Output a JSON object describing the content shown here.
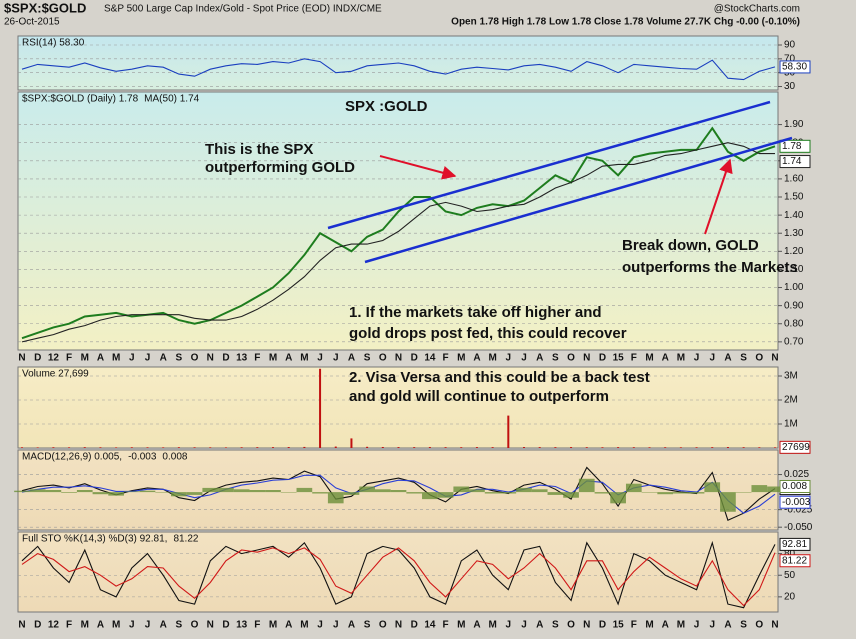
{
  "header": {
    "title": "$SPX:$GOLD",
    "subtitle": "S&P 500 Large Cap Index/Gold - Spot Price (EOD) INDX/CME",
    "date": "26-Oct-2015",
    "source": "@StockCharts.com",
    "quote": "Open 1.78  High 1.78  Low 1.78  Close 1.78  Volume 27.7K  Chg -0.00 (-0.10%)"
  },
  "chart_data": [
    {
      "type": "line",
      "panel": "rsi",
      "series": [
        {
          "name": "RSI(14) 58.30",
          "color": "#1a3fbf",
          "values": [
            55,
            62,
            60,
            58,
            64,
            57,
            52,
            55,
            60,
            58,
            48,
            45,
            55,
            60,
            63,
            62,
            66,
            64,
            70,
            66,
            50,
            52,
            60,
            62,
            64,
            60,
            52,
            48,
            55,
            58,
            56,
            54,
            60,
            62,
            58,
            52,
            66,
            60,
            50,
            62,
            60,
            58,
            56,
            55,
            68,
            42,
            40,
            52,
            58.3
          ]
        }
      ],
      "last_label": "58.30",
      "ylim": [
        25,
        103
      ],
      "yticks": [
        30,
        50,
        70,
        90
      ],
      "grid": true
    },
    {
      "type": "line",
      "panel": "price",
      "categories": [
        "N",
        "D",
        "12",
        "F",
        "M",
        "A",
        "M",
        "J",
        "J",
        "A",
        "S",
        "O",
        "N",
        "D",
        "13",
        "F",
        "M",
        "A",
        "M",
        "J",
        "J",
        "A",
        "S",
        "O",
        "N",
        "D",
        "14",
        "F",
        "M",
        "A",
        "M",
        "J",
        "J",
        "A",
        "S",
        "O",
        "N",
        "D",
        "15",
        "F",
        "M",
        "A",
        "M",
        "J",
        "J",
        "A",
        "S",
        "O",
        "N"
      ],
      "series": [
        {
          "name": "$SPX:$GOLD (Daily) 1.78",
          "color": "#1e7d1e",
          "values": [
            0.72,
            0.75,
            0.78,
            0.8,
            0.84,
            0.85,
            0.86,
            0.84,
            0.85,
            0.86,
            0.82,
            0.8,
            0.82,
            0.86,
            0.9,
            0.95,
            1.0,
            1.08,
            1.18,
            1.3,
            1.25,
            1.2,
            1.28,
            1.32,
            1.42,
            1.5,
            1.5,
            1.42,
            1.4,
            1.44,
            1.46,
            1.45,
            1.48,
            1.55,
            1.62,
            1.58,
            1.72,
            1.7,
            1.62,
            1.72,
            1.74,
            1.75,
            1.76,
            1.76,
            1.88,
            1.75,
            1.7,
            1.75,
            1.78
          ]
        },
        {
          "name": "MA(50) 1.74",
          "color": "#222222",
          "values": [
            0.7,
            0.72,
            0.74,
            0.77,
            0.79,
            0.82,
            0.84,
            0.85,
            0.85,
            0.85,
            0.85,
            0.83,
            0.82,
            0.82,
            0.84,
            0.88,
            0.93,
            0.99,
            1.06,
            1.15,
            1.22,
            1.24,
            1.24,
            1.26,
            1.31,
            1.38,
            1.45,
            1.47,
            1.45,
            1.42,
            1.43,
            1.45,
            1.46,
            1.5,
            1.55,
            1.58,
            1.62,
            1.67,
            1.68,
            1.68,
            1.7,
            1.73,
            1.74,
            1.76,
            1.78,
            1.8,
            1.78,
            1.74,
            1.74
          ]
        }
      ],
      "ylim": [
        0.655,
        2.08
      ],
      "yticks": [
        {
          "value": 0.7,
          "label": "0.70"
        },
        {
          "value": 0.8,
          "label": "0.80"
        },
        {
          "value": 0.9,
          "label": "0.90"
        },
        {
          "value": 1.0,
          "label": "1.00"
        },
        {
          "value": 1.1,
          "label": "1.10"
        },
        {
          "value": 1.2,
          "label": "1.20"
        },
        {
          "value": 1.3,
          "label": "1.30"
        },
        {
          "value": 1.4,
          "label": "1.40"
        },
        {
          "value": 1.5,
          "label": "1.50"
        },
        {
          "value": 1.6,
          "label": "1.60"
        },
        {
          "value": 1.7,
          "label": "1.70"
        },
        {
          "value": 1.8,
          "label": "1.80"
        },
        {
          "value": 1.9,
          "label": "1.90"
        }
      ],
      "grid": true,
      "annotations": [
        {
          "text": "SPX :GOLD",
          "color": "#1a2fd0"
        },
        {
          "text": "This is the SPX",
          "color": "#e0102a"
        },
        {
          "text": "outperforming GOLD",
          "color": "#e0102a"
        },
        {
          "text": "Break down, GOLD",
          "color": "#e0102a"
        },
        {
          "text": "outperforms the Markets",
          "color": "#e0102a"
        },
        {
          "text": "1.  If the markets take off higher and",
          "color": "#1a2fd0"
        },
        {
          "text": "gold drops post fed, this could recover",
          "color": "#1a2fd0"
        },
        {
          "text": "2. Visa Versa and this could be a back test",
          "color": "#1a2fd0"
        },
        {
          "text": "and gold will continue to outperform",
          "color": "#1a2fd0"
        }
      ]
    },
    {
      "type": "bar",
      "panel": "volume",
      "series": [
        {
          "name": "Volume 27,699",
          "color": "#c01010",
          "values": [
            30000,
            25000,
            32000,
            28000,
            35000,
            30000,
            26000,
            31000,
            29000,
            27000,
            33000,
            30000,
            28000,
            26000,
            31000,
            34000,
            36000,
            40000,
            45000,
            3300000,
            60000,
            400000,
            50000,
            42000,
            38000,
            36000,
            40000,
            35000,
            33000,
            38000,
            36000,
            1350000,
            40000,
            37000,
            35000,
            39000,
            34000,
            31000,
            36000,
            33000,
            30000,
            32000,
            29000,
            31000,
            35000,
            40000,
            33000,
            30000,
            27699
          ]
        }
      ],
      "ylim": [
        0,
        3375000
      ],
      "yticks": [
        {
          "value": 1000000,
          "label": "1M"
        },
        {
          "value": 2000000,
          "label": "2M"
        },
        {
          "value": 3000000,
          "label": "3M"
        }
      ],
      "grid": true
    },
    {
      "type": "line",
      "panel": "macd",
      "series": [
        {
          "name": "MACD(12,26,9) 0.005,",
          "color": "#111111",
          "values": [
            0.002,
            0.008,
            0.01,
            0.006,
            0.012,
            0.003,
            -0.004,
            0.002,
            0.006,
            0.004,
            -0.008,
            -0.012,
            0.002,
            0.01,
            0.014,
            0.016,
            0.02,
            0.018,
            0.03,
            0.022,
            -0.01,
            -0.006,
            0.012,
            0.016,
            0.02,
            0.014,
            -0.004,
            -0.014,
            0.004,
            0.008,
            0.002,
            -0.002,
            0.01,
            0.014,
            0.004,
            -0.01,
            0.035,
            0.012,
            -0.02,
            0.018,
            0.01,
            0.004,
            0.0,
            -0.002,
            0.028,
            -0.04,
            -0.03,
            -0.01,
            0.005
          ]
        },
        {
          "name": "-0.003",
          "color": "#2a3fd6",
          "values": [
            0.0,
            0.004,
            0.007,
            0.007,
            0.009,
            0.006,
            0.001,
            0.001,
            0.004,
            0.004,
            -0.002,
            -0.008,
            -0.004,
            0.004,
            0.01,
            0.013,
            0.017,
            0.018,
            0.024,
            0.024,
            0.006,
            -0.002,
            0.004,
            0.012,
            0.017,
            0.016,
            0.006,
            -0.006,
            -0.004,
            0.004,
            0.004,
            0.0,
            0.004,
            0.01,
            0.008,
            -0.002,
            0.016,
            0.014,
            -0.004,
            0.006,
            0.01,
            0.007,
            0.002,
            0.0,
            0.014,
            -0.012,
            -0.03,
            -0.02,
            -0.003
          ]
        },
        {
          "name": "0.008",
          "color": "#6b8e3a",
          "style": "bar",
          "values": [
            0.002,
            0.004,
            0.003,
            -0.001,
            0.003,
            -0.003,
            -0.005,
            0.001,
            0.002,
            0.0,
            -0.006,
            -0.004,
            0.006,
            0.006,
            0.004,
            0.003,
            0.003,
            0.0,
            0.006,
            -0.002,
            -0.016,
            -0.004,
            0.008,
            0.004,
            0.003,
            -0.002,
            -0.01,
            -0.008,
            0.008,
            0.004,
            -0.002,
            -0.002,
            0.006,
            0.004,
            -0.004,
            -0.008,
            0.019,
            -0.002,
            -0.016,
            0.012,
            0.0,
            -0.003,
            -0.002,
            -0.002,
            0.014,
            -0.028,
            0.0,
            0.01,
            0.008
          ]
        }
      ],
      "ylim": [
        -0.054,
        0.06
      ],
      "yticks": [
        {
          "value": -0.05,
          "label": "-0.050"
        },
        -0.025,
        0.025
      ],
      "grid": true
    },
    {
      "type": "line",
      "panel": "sto",
      "categories": [
        "N",
        "D",
        "12",
        "F",
        "M",
        "A",
        "M",
        "J",
        "J",
        "A",
        "S",
        "O",
        "N",
        "D",
        "13",
        "F",
        "M",
        "A",
        "M",
        "J",
        "J",
        "A",
        "S",
        "O",
        "N",
        "D",
        "14",
        "F",
        "M",
        "A",
        "M",
        "J",
        "J",
        "A",
        "S",
        "O",
        "N",
        "D",
        "15",
        "F",
        "M",
        "A",
        "M",
        "J",
        "J",
        "A",
        "S",
        "O",
        "N"
      ],
      "series": [
        {
          "name": "Full STO %K(14,3) %D(3) 92.81,",
          "color": "#111111",
          "values": [
            70,
            90,
            60,
            40,
            85,
            30,
            20,
            60,
            80,
            50,
            15,
            10,
            70,
            90,
            80,
            85,
            90,
            75,
            95,
            60,
            10,
            20,
            80,
            90,
            85,
            60,
            20,
            10,
            70,
            85,
            50,
            30,
            85,
            90,
            40,
            15,
            95,
            60,
            10,
            80,
            70,
            50,
            40,
            30,
            95,
            10,
            5,
            50,
            92.81
          ]
        },
        {
          "name": "81.22",
          "color": "#d01818",
          "values": [
            65,
            80,
            72,
            55,
            62,
            50,
            35,
            45,
            62,
            60,
            35,
            18,
            40,
            70,
            85,
            82,
            88,
            80,
            88,
            72,
            35,
            25,
            50,
            75,
            88,
            70,
            40,
            20,
            45,
            70,
            65,
            45,
            60,
            80,
            60,
            30,
            70,
            70,
            30,
            55,
            75,
            60,
            45,
            35,
            70,
            30,
            8,
            30,
            81.22
          ]
        }
      ],
      "ylim": [
        -1,
        110
      ],
      "yticks": [
        20,
        50,
        80
      ],
      "grid": true
    }
  ]
}
